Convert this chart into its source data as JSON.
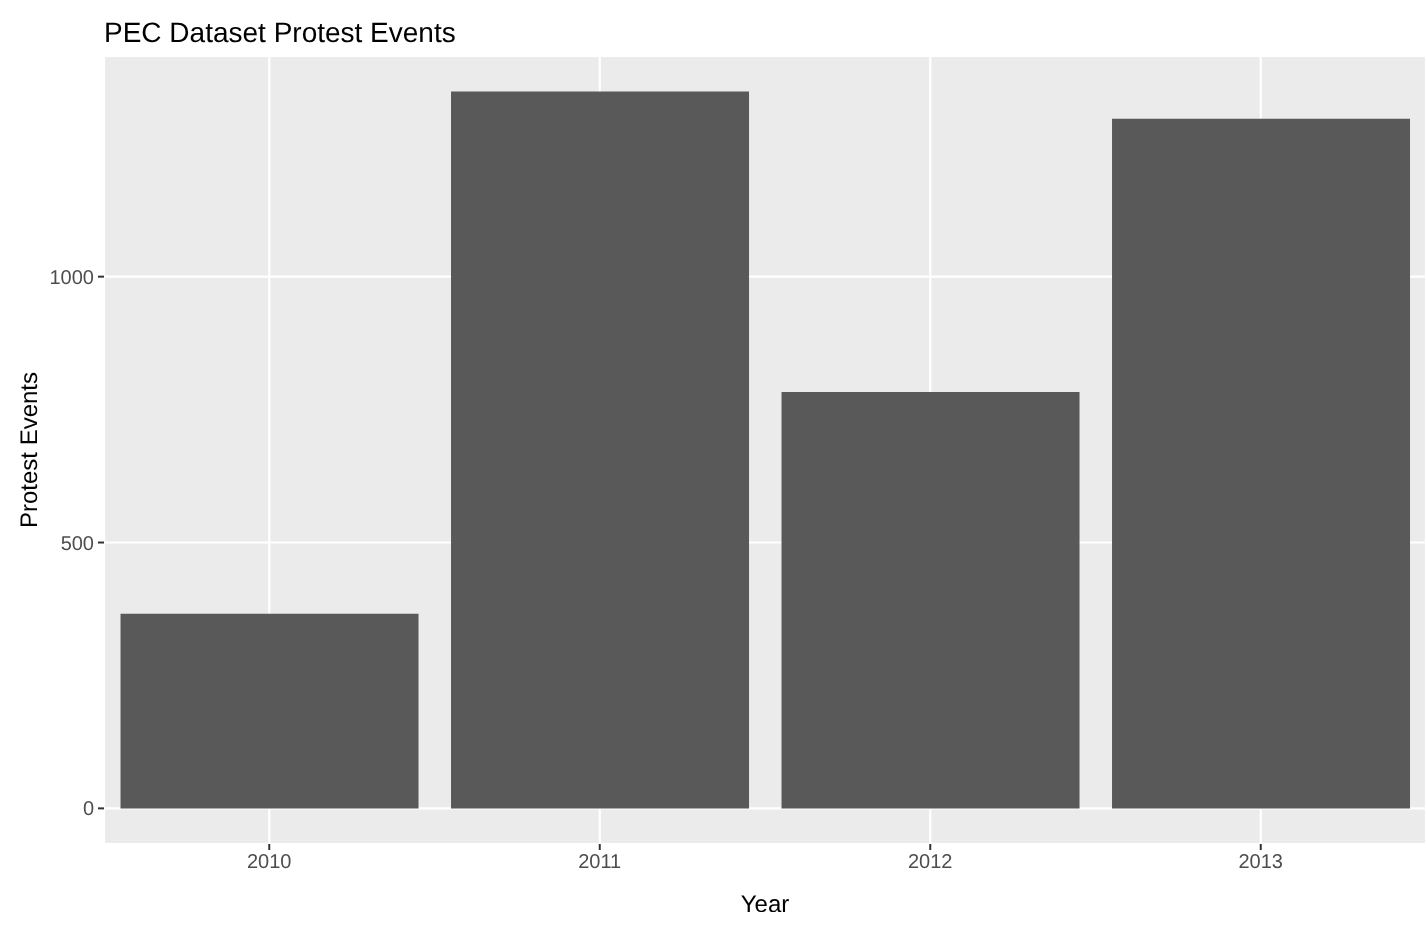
{
  "chart_data": {
    "type": "bar",
    "title": "PEC Dataset Protest Events",
    "xlabel": "Year",
    "ylabel": "Protest Events",
    "categories": [
      "2010",
      "2011",
      "2012",
      "2013"
    ],
    "values": [
      366,
      1348,
      783,
      1297
    ],
    "color": "#595959",
    "ylim": [
      -67,
      1415
    ],
    "yticks": [
      0,
      500,
      1000
    ],
    "grid": true
  }
}
